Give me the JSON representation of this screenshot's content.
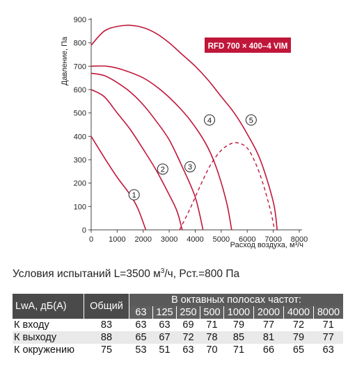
{
  "chart_data": {
    "type": "line",
    "badge": "RFD 700 × 400–4 VIM",
    "xlabel": "Расход воздуха, м³/ч",
    "ylabel": "Давление, Па",
    "xlim": [
      0,
      8000
    ],
    "ylim": [
      0,
      900
    ],
    "xticks": [
      0,
      1000,
      2000,
      3000,
      4000,
      5000,
      6000,
      7000,
      8000
    ],
    "yticks": [
      0,
      100,
      200,
      300,
      400,
      500,
      600,
      700,
      800,
      900
    ],
    "grid": false,
    "colors": {
      "curve": "#c0163a",
      "badge_bg": "#c0163a",
      "axis": "#444444"
    },
    "series": [
      {
        "label": "1",
        "label_at": [
          1650,
          150
        ],
        "points": [
          [
            0,
            400
          ],
          [
            500,
            310
          ],
          [
            1000,
            225
          ],
          [
            1500,
            150
          ],
          [
            1800,
            90
          ],
          [
            2100,
            0
          ]
        ]
      },
      {
        "label": "2",
        "label_at": [
          2750,
          260
        ],
        "points": [
          [
            0,
            600
          ],
          [
            500,
            570
          ],
          [
            1000,
            500
          ],
          [
            1500,
            430
          ],
          [
            2000,
            345
          ],
          [
            2500,
            255
          ],
          [
            3000,
            150
          ],
          [
            3300,
            80
          ],
          [
            3500,
            0
          ]
        ]
      },
      {
        "label": "3",
        "label_at": [
          3800,
          270
        ],
        "points": [
          [
            0,
            670
          ],
          [
            500,
            660
          ],
          [
            1000,
            630
          ],
          [
            1500,
            590
          ],
          [
            2000,
            535
          ],
          [
            2500,
            465
          ],
          [
            3000,
            385
          ],
          [
            3500,
            270
          ],
          [
            4000,
            140
          ],
          [
            4300,
            0
          ]
        ]
      },
      {
        "label": "4",
        "label_at": [
          4550,
          470
        ],
        "points": [
          [
            0,
            700
          ],
          [
            600,
            700
          ],
          [
            1200,
            685
          ],
          [
            2000,
            650
          ],
          [
            2600,
            605
          ],
          [
            3200,
            545
          ],
          [
            3800,
            470
          ],
          [
            4400,
            370
          ],
          [
            4800,
            270
          ],
          [
            5200,
            120
          ],
          [
            5400,
            0
          ]
        ]
      },
      {
        "label": "5",
        "label_at": [
          6150,
          470
        ],
        "points": [
          [
            0,
            790
          ],
          [
            500,
            850
          ],
          [
            1000,
            870
          ],
          [
            1500,
            875
          ],
          [
            2000,
            865
          ],
          [
            2500,
            840
          ],
          [
            3000,
            800
          ],
          [
            3500,
            750
          ],
          [
            4000,
            700
          ],
          [
            4500,
            640
          ],
          [
            5000,
            570
          ],
          [
            5500,
            500
          ],
          [
            6000,
            410
          ],
          [
            6500,
            300
          ],
          [
            7000,
            120
          ],
          [
            7150,
            0
          ]
        ]
      }
    ],
    "operating_curve": {
      "style": "dashed",
      "points": [
        [
          3400,
          0
        ],
        [
          3800,
          90
        ],
        [
          4200,
          190
        ],
        [
          4600,
          280
        ],
        [
          5000,
          340
        ],
        [
          5400,
          370
        ],
        [
          5700,
          370
        ],
        [
          6000,
          350
        ],
        [
          6300,
          290
        ],
        [
          6600,
          200
        ],
        [
          6900,
          80
        ],
        [
          7050,
          0
        ]
      ]
    }
  },
  "conditions": {
    "text": "Условия испытаний L=3500 м",
    "sup": "3",
    "text2": "/ч, Рст.=800 Па"
  },
  "table": {
    "label_header": "LwA, дБ(А)",
    "total_header": "Общий",
    "band_header": "В октавных полосах частот:",
    "frequencies": [
      "63",
      "125",
      "250",
      "500",
      "1000",
      "2000",
      "4000",
      "8000"
    ],
    "rows": [
      {
        "label": "К входу",
        "total": "83",
        "values": [
          "63",
          "63",
          "69",
          "71",
          "79",
          "77",
          "72",
          "71"
        ]
      },
      {
        "label": "К выходу",
        "total": "88",
        "values": [
          "65",
          "67",
          "72",
          "78",
          "85",
          "81",
          "79",
          "77"
        ]
      },
      {
        "label": "К окружению",
        "total": "75",
        "values": [
          "53",
          "51",
          "63",
          "70",
          "71",
          "66",
          "65",
          "63"
        ]
      }
    ]
  }
}
